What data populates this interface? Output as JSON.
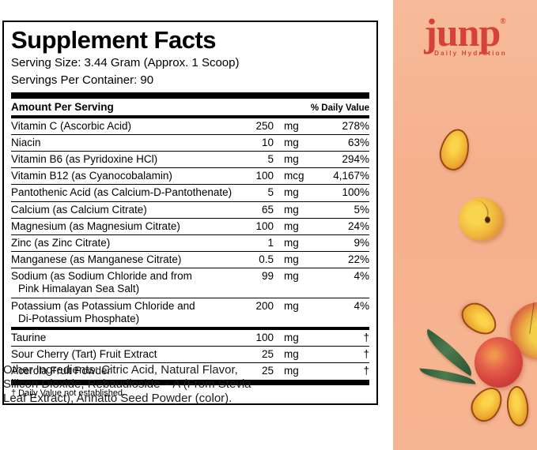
{
  "facts": {
    "title": "Supplement Facts",
    "serving_size": "Serving Size: 3.44 Gram (Approx. 1 Scoop)",
    "servings_per_container": "Servings Per Container: 90",
    "col_amount": "Amount Per Serving",
    "col_dv": "% Daily Value",
    "rows": [
      {
        "name": "Vitamin C (Ascorbic Acid)",
        "amount": "250",
        "unit": "mg",
        "dv": "278%"
      },
      {
        "name": "Niacin",
        "amount": "10",
        "unit": "mg",
        "dv": "63%"
      },
      {
        "name": "Vitamin B6 (as Pyridoxine HCl)",
        "amount": "5",
        "unit": "mg",
        "dv": "294%"
      },
      {
        "name": "Vitamin B12 (as Cyanocobalamin)",
        "amount": "100",
        "unit": "mcg",
        "dv": "4,167%"
      },
      {
        "name": "Pantothenic Acid (as Calcium-D-Pantothenate)",
        "amount": "5",
        "unit": "mg",
        "dv": "100%"
      },
      {
        "name": "Calcium (as Calcium Citrate)",
        "amount": "65",
        "unit": "mg",
        "dv": "5%"
      },
      {
        "name": "Magnesium (as Magnesium Citrate)",
        "amount": "100",
        "unit": "mg",
        "dv": "24%"
      },
      {
        "name": "Zinc (as Zinc Citrate)",
        "amount": "1",
        "unit": "mg",
        "dv": "9%"
      },
      {
        "name": "Manganese (as Manganese Citrate)",
        "amount": "0.5",
        "unit": "mg",
        "dv": "22%"
      },
      {
        "name": "Sodium (as Sodium Chloride and from",
        "name2": "Pink Himalayan Sea Salt)",
        "amount": "99",
        "unit": "mg",
        "dv": "4%"
      },
      {
        "name": "Potassium (as Potassium Chloride and",
        "name2": "Di-Potassium Phosphate)",
        "amount": "200",
        "unit": "mg",
        "dv": "4%"
      }
    ],
    "other_rows": [
      {
        "name": "Taurine",
        "amount": "100",
        "unit": "mg",
        "dv": "†"
      },
      {
        "name": "Sour Cherry (Tart) Fruit Extract",
        "amount": "25",
        "unit": "mg",
        "dv": "†"
      },
      {
        "name": "Acerola Fruit Powder",
        "amount": "25",
        "unit": "mg",
        "dv": "†"
      }
    ],
    "footnote": "† Daily Value not established."
  },
  "other_ingredients": "Other Ingredients: Citric Acid, Natural Flavor, Silicon Dioxide, Rebaudioside – A (From Stevia Leaf Extract), Annatto Seed Powder (color).",
  "brand": {
    "name": "junp",
    "trademark": "®",
    "tagline": "Daily Hydration",
    "logo_color": "#d6423a",
    "panel_bg": "#f6b28f"
  }
}
